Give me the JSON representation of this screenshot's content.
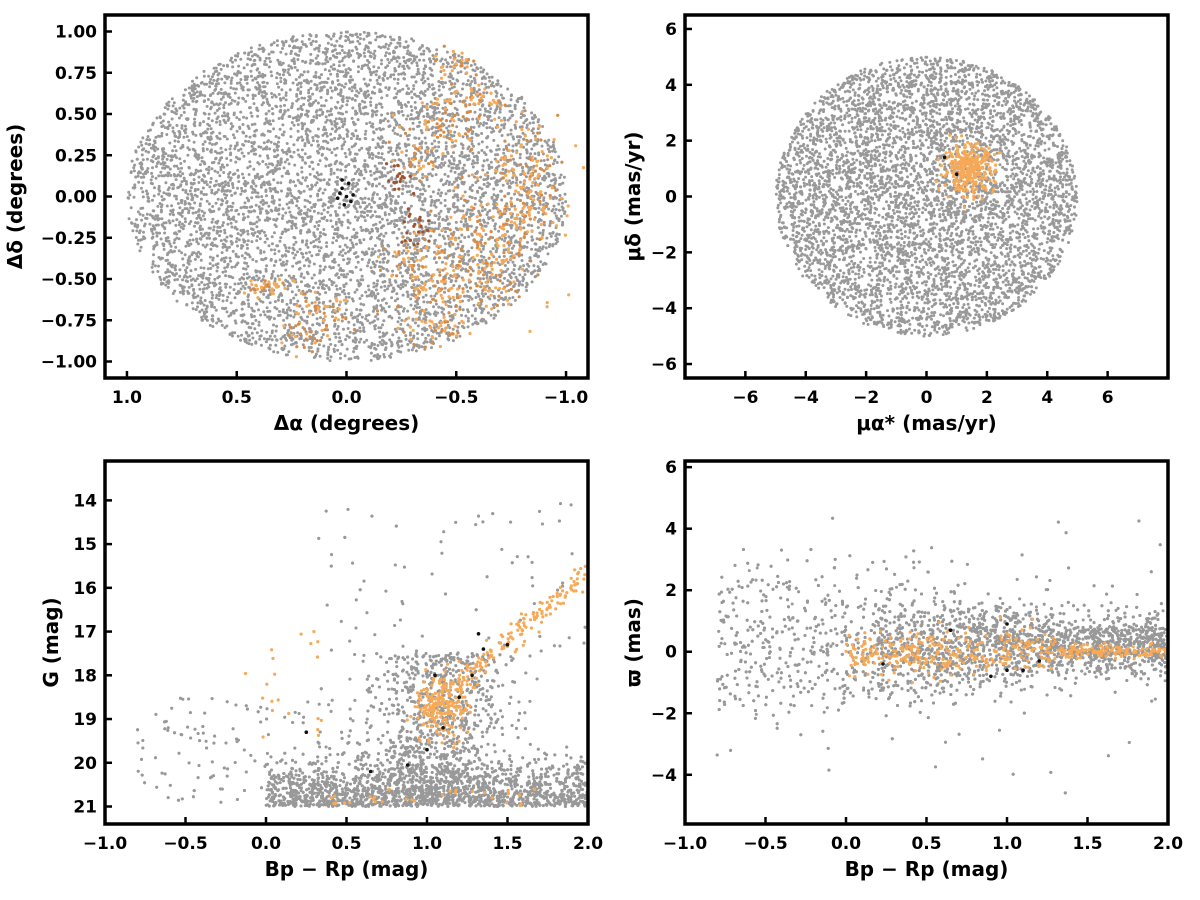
{
  "colors": {
    "field": "#999999",
    "members": "#f6a957",
    "members_dark": "#d88a45",
    "members_brown": "#a0522d",
    "highlight": "#111111",
    "axis": "#000000"
  },
  "chart_data": [
    {
      "type": "scatter",
      "id": "sky",
      "xlabel": "Δα (degrees)",
      "ylabel": "Δδ (degrees)",
      "xlim": [
        1.1,
        -1.1
      ],
      "ylim": [
        -1.1,
        1.1
      ],
      "x_inverted": true,
      "xticks": [
        1.0,
        0.5,
        0.0,
        -0.5,
        -1.0
      ],
      "xtick_labels": [
        "1.0",
        "0.5",
        "0.0",
        "−0.5",
        "−1.0"
      ],
      "yticks": [
        -1.0,
        -0.75,
        -0.5,
        -0.25,
        0.0,
        0.25,
        0.5,
        0.75,
        1.0
      ],
      "ytick_labels": [
        "−1.00",
        "−0.75",
        "−0.50",
        "−0.25",
        "0.00",
        "0.25",
        "0.50",
        "0.75",
        "1.00"
      ],
      "grid": false,
      "series": [
        {
          "role": "field",
          "shape": "disk",
          "center": [
            0.0,
            0.0
          ],
          "radius_x": 1.0,
          "radius_y": 1.0,
          "n": 6000
        },
        {
          "role": "members",
          "clumps": [
            [
              -0.45,
              0.45,
              0.08,
              0.07,
              60
            ],
            [
              -0.8,
              0.2,
              0.1,
              0.15,
              90
            ],
            [
              -0.65,
              -0.3,
              0.15,
              0.15,
              130
            ],
            [
              -0.5,
              -0.55,
              0.15,
              0.1,
              110
            ],
            [
              -0.6,
              0.6,
              0.05,
              0.05,
              30
            ],
            [
              -0.5,
              0.8,
              0.05,
              0.05,
              25
            ],
            [
              0.35,
              -0.55,
              0.05,
              0.03,
              35
            ],
            [
              0.1,
              -0.7,
              0.07,
              0.06,
              40
            ],
            [
              0.2,
              -0.85,
              0.05,
              0.05,
              25
            ],
            [
              -0.3,
              -0.4,
              0.06,
              0.07,
              40
            ],
            [
              -0.4,
              -0.8,
              0.08,
              0.05,
              40
            ],
            [
              -0.8,
              -0.05,
              0.08,
              0.1,
              60
            ],
            [
              -0.33,
              0.2,
              0.05,
              0.05,
              25
            ]
          ]
        },
        {
          "role": "members_brown",
          "clumps": [
            [
              -0.24,
              0.12,
              0.03,
              0.06,
              18
            ],
            [
              -0.33,
              -0.2,
              0.04,
              0.06,
              22
            ]
          ]
        },
        {
          "role": "highlight",
          "points": [
            [
              0.02,
              0.05
            ],
            [
              0.0,
              0.0
            ],
            [
              -0.02,
              -0.03
            ],
            [
              0.03,
              0.02
            ],
            [
              -0.03,
              0.01
            ],
            [
              0.01,
              -0.05
            ],
            [
              0.04,
              -0.01
            ],
            [
              -0.01,
              0.08
            ],
            [
              0.02,
              0.1
            ]
          ]
        }
      ]
    },
    {
      "type": "scatter",
      "id": "proper-motion",
      "xlabel": "μα* (mas/yr)",
      "ylabel": "μδ (mas/yr)",
      "xlim": [
        -8.0,
        8.0
      ],
      "ylim": [
        -6.5,
        6.5
      ],
      "xticks": [
        -6,
        -4,
        -2,
        0,
        2,
        4,
        6
      ],
      "xtick_labels": [
        "−6",
        "−4",
        "−2",
        "0",
        "2",
        "4",
        "6"
      ],
      "yticks": [
        -6,
        -4,
        -2,
        0,
        2,
        4,
        6
      ],
      "ytick_labels": [
        "−6",
        "−4",
        "−2",
        "0",
        "2",
        "4",
        "6"
      ],
      "grid": false,
      "series": [
        {
          "role": "field",
          "shape": "disk",
          "center": [
            0.0,
            0.0
          ],
          "radius_x": 5.0,
          "radius_y": 5.0,
          "n": 5500
        },
        {
          "role": "members",
          "clumps": [
            [
              1.4,
              1.0,
              0.42,
              0.42,
              320
            ]
          ]
        },
        {
          "role": "highlight",
          "points": [
            [
              0.6,
              1.4
            ],
            [
              1.0,
              0.8
            ]
          ]
        }
      ]
    },
    {
      "type": "scatter",
      "id": "cmd",
      "xlabel": "Bp − Rp (mag)",
      "ylabel": "G (mag)",
      "xlim": [
        -1.0,
        2.0
      ],
      "ylim": [
        21.4,
        13.1
      ],
      "y_inverted": true,
      "xticks": [
        -1.0,
        -0.5,
        0.0,
        0.5,
        1.0,
        1.5,
        2.0
      ],
      "xtick_labels": [
        "−1.0",
        "−0.5",
        "0.0",
        "0.5",
        "1.0",
        "1.5",
        "2.0"
      ],
      "yticks": [
        14,
        15,
        16,
        17,
        18,
        19,
        20,
        21
      ],
      "ytick_labels": [
        "14",
        "15",
        "16",
        "17",
        "18",
        "19",
        "20",
        "21"
      ],
      "grid": false,
      "series": [
        {
          "role": "field",
          "shape": "cmd",
          "n": 6000
        },
        {
          "role": "members",
          "shape": "sequence",
          "n": 420
        },
        {
          "role": "highlight",
          "points": [
            [
              0.65,
              20.2
            ],
            [
              0.88,
              20.05
            ],
            [
              1.0,
              19.7
            ],
            [
              1.1,
              19.2
            ],
            [
              1.2,
              18.5
            ],
            [
              1.28,
              18.0
            ],
            [
              1.35,
              17.4
            ],
            [
              1.5,
              17.3
            ],
            [
              1.32,
              17.05
            ],
            [
              0.25,
              19.3
            ],
            [
              1.05,
              18.0
            ]
          ]
        }
      ]
    },
    {
      "type": "scatter",
      "id": "parallax",
      "xlabel": "Bp − Rp (mag)",
      "ylabel": "ϖ (mas)",
      "xlim": [
        -1.0,
        2.0
      ],
      "ylim": [
        -5.6,
        6.2
      ],
      "xticks": [
        -1.0,
        -0.5,
        0.0,
        0.5,
        1.0,
        1.5,
        2.0
      ],
      "xtick_labels": [
        "−1.0",
        "−0.5",
        "0.0",
        "0.5",
        "1.0",
        "1.5",
        "2.0"
      ],
      "yticks": [
        -4,
        -2,
        0,
        2,
        4,
        6
      ],
      "ytick_labels": [
        "−4",
        "−2",
        "0",
        "2",
        "4",
        "6"
      ],
      "grid": false,
      "series": [
        {
          "role": "field",
          "shape": "band",
          "n": 6000
        },
        {
          "role": "members",
          "shape": "band-narrow",
          "n": 450
        },
        {
          "role": "highlight",
          "points": [
            [
              0.23,
              -0.4
            ],
            [
              0.65,
              0.7
            ],
            [
              0.9,
              -0.8
            ],
            [
              1.0,
              -0.6
            ],
            [
              1.0,
              0.9
            ],
            [
              1.1,
              -0.6
            ],
            [
              1.2,
              -0.3
            ]
          ]
        }
      ]
    }
  ]
}
